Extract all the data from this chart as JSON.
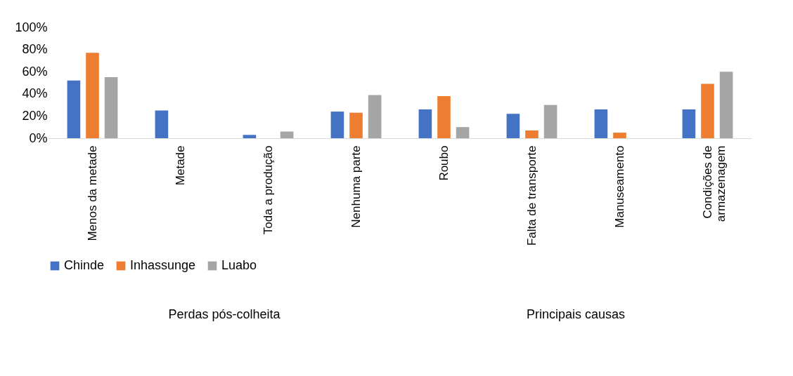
{
  "chart_data": {
    "type": "bar",
    "categories": [
      "Menos da metade",
      "Metade",
      "Toda a produção",
      "Nenhuma parte",
      "Roubo",
      "Falta de transporte",
      "Manuseamento",
      "Condições de armazenagem"
    ],
    "series": [
      {
        "name": "Chinde",
        "color": "#4472c4",
        "values": [
          52,
          25,
          3,
          24,
          26,
          22,
          26,
          26
        ]
      },
      {
        "name": "Inhassunge",
        "color": "#ed7d31",
        "values": [
          77,
          0,
          0,
          23,
          38,
          7,
          5,
          49
        ]
      },
      {
        "name": "Luabo",
        "color": "#a5a5a5",
        "values": [
          55,
          0,
          6,
          39,
          10,
          30,
          0,
          60
        ]
      }
    ],
    "ylim": [
      0,
      100
    ],
    "yticks": [
      {
        "value": 0,
        "label": "0%"
      },
      {
        "value": 20,
        "label": "20%"
      },
      {
        "value": 40,
        "label": "40%"
      },
      {
        "value": 60,
        "label": "60%"
      },
      {
        "value": 80,
        "label": "80%"
      },
      {
        "value": 100,
        "label": "100%"
      }
    ],
    "annotations": [
      "Perdas pós-colheita",
      "Principais causas"
    ],
    "grid": false,
    "legend": "bottom"
  }
}
